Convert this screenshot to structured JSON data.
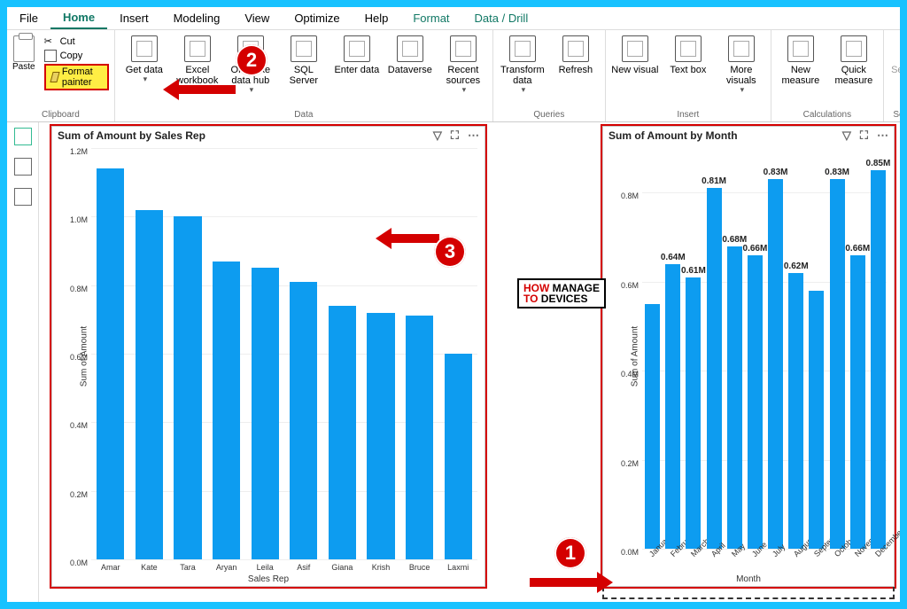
{
  "menu": {
    "items": [
      "File",
      "Home",
      "Insert",
      "Modeling",
      "View",
      "Optimize",
      "Help",
      "Format",
      "Data / Drill"
    ],
    "active": "Home"
  },
  "ribbon": {
    "clipboard": {
      "label": "Clipboard",
      "paste": "Paste",
      "cut": "Cut",
      "copy": "Copy",
      "format_painter": "Format painter"
    },
    "data": {
      "label": "Data",
      "get_data": "Get data",
      "excel": "Excel workbook",
      "onelake": "OneLake data hub",
      "sql": "SQL Server",
      "enter": "Enter data",
      "dataverse": "Dataverse",
      "recent": "Recent sources"
    },
    "queries": {
      "label": "Queries",
      "transform": "Transform data",
      "refresh": "Refresh"
    },
    "insert": {
      "label": "Insert",
      "new_visual": "New visual",
      "text_box": "Text box",
      "more": "More visuals"
    },
    "calc": {
      "label": "Calculations",
      "new_measure": "New measure",
      "quick": "Quick measure"
    },
    "sens": {
      "label": "Sensitivity",
      "btn": "Sensitivity"
    }
  },
  "chart_left": {
    "title": "Sum of Amount by Sales Rep",
    "ylabel": "Sum of Amount",
    "xlabel": "Sales Rep",
    "ymax": 1.2,
    "ytick_step": 0.2,
    "ytick_suffix": "M",
    "bar_color": "#0d9cf0",
    "categories": [
      "Amar",
      "Kate",
      "Tara",
      "Aryan",
      "Leila",
      "Asif",
      "Giana",
      "Krish",
      "Bruce",
      "Laxmi"
    ],
    "values": [
      1.14,
      1.02,
      1.0,
      0.87,
      0.85,
      0.81,
      0.74,
      0.72,
      0.71,
      0.6
    ]
  },
  "chart_right": {
    "title": "Sum of Amount by Month",
    "ylabel": "Sum of Amount",
    "xlabel": "Month",
    "ymax": 0.9,
    "yticks": [
      0.0,
      0.2,
      0.4,
      0.6,
      0.8
    ],
    "ytick_suffix": "M",
    "bar_color": "#0d9cf0",
    "categories": [
      "January",
      "February",
      "March",
      "April",
      "May",
      "June",
      "July",
      "August",
      "Septem…",
      "October",
      "Novem…",
      "December"
    ],
    "values": [
      0.55,
      0.64,
      0.61,
      0.81,
      0.68,
      0.66,
      0.83,
      0.62,
      0.58,
      0.83,
      0.66,
      0.85
    ],
    "value_labels": [
      "",
      "0.64M",
      "0.61M",
      "0.81M",
      "0.68M",
      "0.66M",
      "0.83M",
      "0.62M",
      "",
      "0.83M",
      "0.66M",
      "0.85M"
    ]
  },
  "watermark": {
    "line1": "HOW",
    "line2": "MANAGE",
    "line3": "DEVICES",
    "to": "TO"
  }
}
